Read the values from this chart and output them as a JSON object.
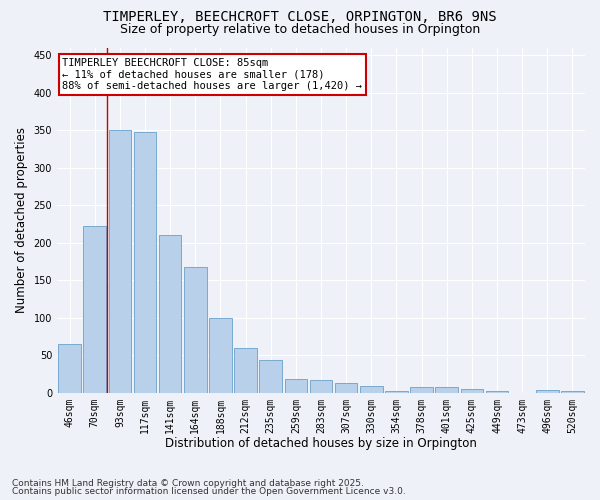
{
  "title_line1": "TIMPERLEY, BEECHCROFT CLOSE, ORPINGTON, BR6 9NS",
  "title_line2": "Size of property relative to detached houses in Orpington",
  "xlabel": "Distribution of detached houses by size in Orpington",
  "ylabel": "Number of detached properties",
  "categories": [
    "46sqm",
    "70sqm",
    "93sqm",
    "117sqm",
    "141sqm",
    "164sqm",
    "188sqm",
    "212sqm",
    "235sqm",
    "259sqm",
    "283sqm",
    "307sqm",
    "330sqm",
    "354sqm",
    "378sqm",
    "401sqm",
    "425sqm",
    "449sqm",
    "473sqm",
    "496sqm",
    "520sqm"
  ],
  "values": [
    65,
    222,
    350,
    348,
    210,
    168,
    99,
    60,
    44,
    18,
    17,
    13,
    9,
    2,
    8,
    7,
    5,
    2,
    0,
    3,
    2
  ],
  "bar_color": "#b8d0ea",
  "bar_edge_color": "#6aa0cc",
  "annotation_box_text": "TIMPERLEY BEECHCROFT CLOSE: 85sqm\n← 11% of detached houses are smaller (178)\n88% of semi-detached houses are larger (1,420) →",
  "annotation_box_color": "#ffffff",
  "annotation_box_edge_color": "#cc0000",
  "vline_x_index": 1.5,
  "ylim": [
    0,
    460
  ],
  "yticks": [
    0,
    50,
    100,
    150,
    200,
    250,
    300,
    350,
    400,
    450
  ],
  "background_color": "#eef2f8",
  "grid_color": "#ffffff",
  "footer_line1": "Contains HM Land Registry data © Crown copyright and database right 2025.",
  "footer_line2": "Contains public sector information licensed under the Open Government Licence v3.0.",
  "title_fontsize": 10,
  "subtitle_fontsize": 9,
  "axis_label_fontsize": 8.5,
  "tick_fontsize": 7,
  "annotation_fontsize": 7.5,
  "footer_fontsize": 6.5
}
